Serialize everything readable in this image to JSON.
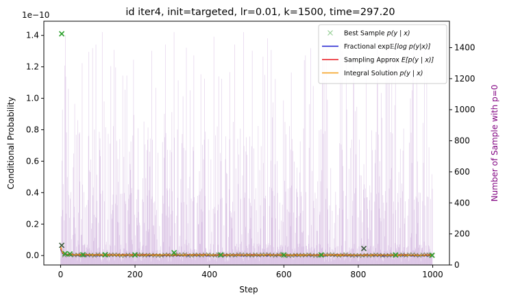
{
  "chart_data": {
    "type": "line",
    "title": "id iter4, init=targeted, lr=0.01, k=1500, time=297.20",
    "xlabel": "Step",
    "ylabel": "Conditional Probability",
    "y2label": "Number of Sample with p=0",
    "y_offset_text": "1e−10",
    "xlim": [
      -45,
      1045
    ],
    "ylim": [
      -0.06,
      1.49
    ],
    "y2lim": [
      0,
      1570
    ],
    "x_ticks": [
      0,
      200,
      400,
      600,
      800,
      1000
    ],
    "x_tick_labels": [
      "0",
      "200",
      "400",
      "600",
      "800",
      "1000"
    ],
    "y_ticks": [
      0.0,
      0.2,
      0.4,
      0.6,
      0.8,
      1.0,
      1.2,
      1.4
    ],
    "y_tick_labels": [
      "0.0",
      "0.2",
      "0.4",
      "0.6",
      "0.8",
      "1.0",
      "1.2",
      "1.4"
    ],
    "y2_ticks": [
      0,
      200,
      400,
      600,
      800,
      1000,
      1200,
      1400
    ],
    "y2_tick_labels": [
      "0",
      "200",
      "400",
      "600",
      "800",
      "1000",
      "1200",
      "1400"
    ],
    "grid": false,
    "legend_position": "top-right",
    "series": [
      {
        "name": "Best Sample $p(y\\mid x)$",
        "label_main": "Best Sample ",
        "label_math": "p(y | x)",
        "kind": "scatter-x",
        "color": "#2ca02c",
        "points": [
          [
            3,
            1.41
          ],
          [
            3,
            0.065
          ],
          [
            12,
            0.012
          ],
          [
            25,
            0.01
          ],
          [
            60,
            0.005
          ],
          [
            120,
            0.005
          ],
          [
            200,
            0.004
          ],
          [
            305,
            0.018
          ],
          [
            430,
            0.004
          ],
          [
            600,
            0.004
          ],
          [
            700,
            0.004
          ],
          [
            815,
            0.045
          ],
          [
            900,
            0.004
          ],
          [
            998,
            0.002
          ]
        ]
      },
      {
        "name": "Fractional exp$\\mathbb{E}[\\log p(y|x)]$",
        "label_main": "Fractional exp",
        "label_math": "𝔼[log p(y|x)]",
        "kind": "line",
        "color": "#1f1fd0",
        "points": [
          [
            0,
            0.04
          ],
          [
            5,
            0.012
          ],
          [
            15,
            0.003
          ],
          [
            50,
            0.001
          ],
          [
            1000,
            0.0
          ]
        ]
      },
      {
        "name": "Sampling Approx $E[p(y\\mid x)]$",
        "label_main": "Sampling Approx ",
        "label_math": "E[p(y | x)]",
        "kind": "line",
        "color": "#e8141c",
        "points": [
          [
            0,
            0.05
          ],
          [
            5,
            0.018
          ],
          [
            15,
            0.007
          ],
          [
            50,
            0.005
          ],
          [
            200,
            0.004
          ],
          [
            1000,
            0.003
          ]
        ]
      },
      {
        "name": "Integral Solution $p(y\\mid x)$",
        "label_main": "Integral Solution ",
        "label_math": "p(y | x)",
        "kind": "line",
        "color": "#f59a12",
        "points": [
          [
            0,
            0.06
          ],
          [
            5,
            0.015
          ],
          [
            15,
            0.005
          ],
          [
            50,
            0.003
          ],
          [
            1000,
            0.002
          ]
        ]
      }
    ],
    "histogram": {
      "axis": "y2",
      "color": "#9b59b6",
      "x_range": [
        0,
        999
      ],
      "description_values": "Number of Sample with p=0 per step, 0 to ~1500",
      "peaks": [
        [
          5,
          1000
        ],
        [
          13,
          1480
        ],
        [
          58,
          1300
        ],
        [
          95,
          1420
        ],
        [
          112,
          1500
        ],
        [
          178,
          1220
        ],
        [
          245,
          1380
        ],
        [
          282,
          1420
        ],
        [
          305,
          1500
        ],
        [
          358,
          1350
        ],
        [
          412,
          1470
        ],
        [
          468,
          1420
        ],
        [
          492,
          1500
        ],
        [
          515,
          1380
        ],
        [
          556,
          1460
        ],
        [
          620,
          1240
        ],
        [
          658,
          1350
        ],
        [
          705,
          1400
        ],
        [
          752,
          1420
        ],
        [
          788,
          1380
        ],
        [
          851,
          1500
        ],
        [
          880,
          1470
        ],
        [
          900,
          1500
        ],
        [
          948,
          1420
        ],
        [
          978,
          1390
        ]
      ]
    }
  }
}
